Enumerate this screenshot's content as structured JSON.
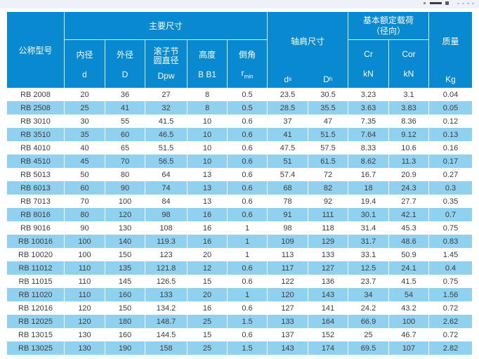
{
  "colors": {
    "header_bg": "#0989cf",
    "stripe_row_bg": "#90d1f0",
    "top_strip_bg": "#eef1f8",
    "header_text": "#ffffff",
    "body_text": "#3d3d3d"
  },
  "table": {
    "header": {
      "model_label": "公称型号",
      "main_dims_label": "主要尺寸",
      "shoulder_label": "轴肩尺寸",
      "load_label_line1": "基本额定载荷",
      "load_label_line2": "（径向）",
      "mass_label": "质量",
      "mass_unit": "Kg",
      "columns": {
        "bore": {
          "name": "内径",
          "symbol": "d"
        },
        "outer": {
          "name": "外径",
          "symbol": "D"
        },
        "pitch": {
          "name_line1": "滚子节",
          "name_line2": "圆直径",
          "symbol": "Dpw"
        },
        "height": {
          "name": "高度",
          "symbol": "B B1"
        },
        "chamfer": {
          "name": "倒角",
          "symbol_base": "r",
          "symbol_sub": "min"
        },
        "ds": {
          "symbol_base": "d",
          "symbol_sub": "s"
        },
        "dh": {
          "symbol_base": "D",
          "symbol_sub": "h"
        },
        "cr": {
          "symbol": "Cr",
          "unit": "kN"
        },
        "cor": {
          "symbol": "Cor",
          "unit": "kN"
        }
      }
    },
    "rows": [
      [
        "RB 2008",
        "20",
        "36",
        "27",
        "8",
        "0.5",
        "23.5",
        "30.5",
        "3.23",
        "3.1",
        "0.04"
      ],
      [
        "RB 2508",
        "25",
        "41",
        "32",
        "8",
        "0.5",
        "28.5",
        "35.5",
        "3.63",
        "3.83",
        "0.05"
      ],
      [
        "RB 3010",
        "30",
        "55",
        "41.5",
        "10",
        "0.6",
        "37",
        "47",
        "7.35",
        "8.36",
        "0.12"
      ],
      [
        "RB 3510",
        "35",
        "60",
        "46.5",
        "10",
        "0.6",
        "41",
        "51.5",
        "7.64",
        "9.12",
        "0.13"
      ],
      [
        "RB 4010",
        "40",
        "65",
        "51.5",
        "10",
        "0.6",
        "47.5",
        "57.5",
        "8.33",
        "10.6",
        "0.16"
      ],
      [
        "RB 4510",
        "45",
        "70",
        "56.5",
        "10",
        "0.6",
        "51",
        "61.5",
        "8.62",
        "11.3",
        "0.17"
      ],
      [
        "RB 5013",
        "50",
        "80",
        "64",
        "13",
        "0.6",
        "57.4",
        "72",
        "16.7",
        "20.9",
        "0.27"
      ],
      [
        "RB 6013",
        "60",
        "90",
        "74",
        "13",
        "0.6",
        "68",
        "82",
        "18",
        "24.3",
        "0.3"
      ],
      [
        "RB 7013",
        "70",
        "100",
        "84",
        "13",
        "0.6",
        "78",
        "92",
        "19.4",
        "27.7",
        "0.35"
      ],
      [
        "RB 8016",
        "80",
        "120",
        "98",
        "16",
        "0.6",
        "91",
        "111",
        "30.1",
        "42.1",
        "0.7"
      ],
      [
        "RB 9016",
        "90",
        "130",
        "108",
        "16",
        "1",
        "98",
        "118",
        "31.4",
        "45.3",
        "0.75"
      ],
      [
        "RB 10016",
        "100",
        "140",
        "119.3",
        "16",
        "1",
        "109",
        "129",
        "31.7",
        "48.6",
        "0.83"
      ],
      [
        "RB 10020",
        "100",
        "150",
        "123",
        "20",
        "1",
        "113",
        "133",
        "33.1",
        "50.9",
        "1.45"
      ],
      [
        "RB 11012",
        "110",
        "135",
        "121.8",
        "12",
        "0.6",
        "117",
        "127",
        "12.5",
        "24.1",
        "0.4"
      ],
      [
        "RB 11015",
        "110",
        "145",
        "126.5",
        "15",
        "0.6",
        "122",
        "136",
        "23.7",
        "41.5",
        "0.75"
      ],
      [
        "RB 11020",
        "110",
        "160",
        "133",
        "20",
        "1",
        "120",
        "143",
        "34",
        "54",
        "1.56"
      ],
      [
        "RB 12016",
        "120",
        "150",
        "134.2",
        "16",
        "0.6",
        "127",
        "141",
        "24.2",
        "43.2",
        "0.72"
      ],
      [
        "RB 12025",
        "120",
        "180",
        "148.7",
        "25",
        "1.5",
        "133",
        "164",
        "66.9",
        "100",
        "2.62"
      ],
      [
        "RB 13015",
        "130",
        "160",
        "144.5",
        "15",
        "0.6",
        "137",
        "152",
        "25",
        "46.7",
        "0.72"
      ],
      [
        "RB 13025",
        "130",
        "190",
        "158",
        "25",
        "1.5",
        "143",
        "174",
        "69.5",
        "107",
        "2.82"
      ]
    ]
  }
}
